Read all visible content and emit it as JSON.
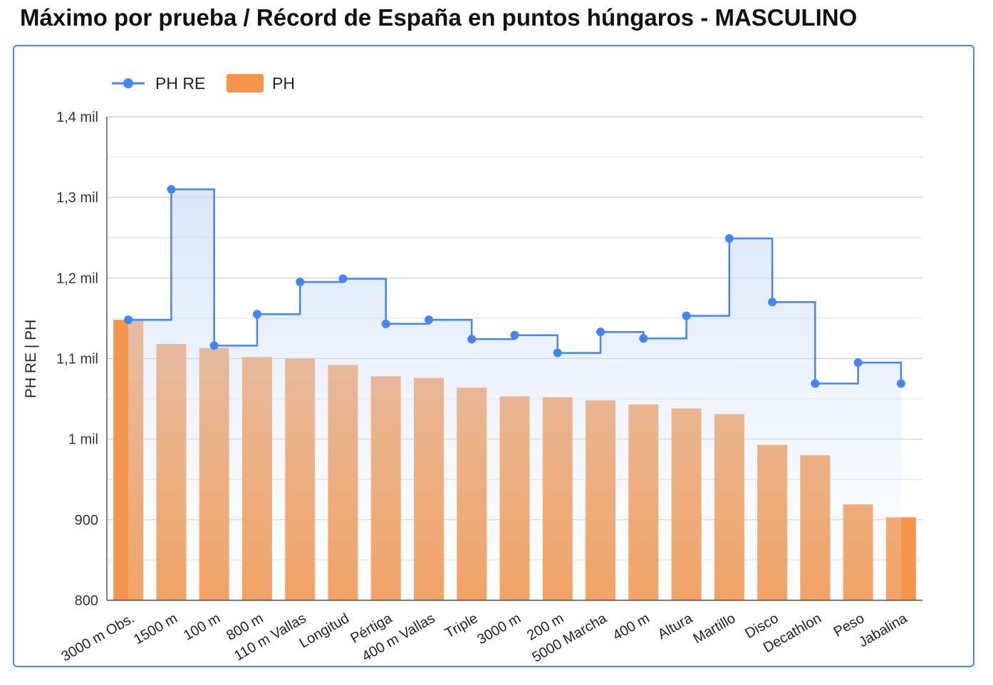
{
  "title": "Máximo por prueba / Récord de España en puntos húngaros - MASCULINO",
  "colors": {
    "ph_re": "#4285f4",
    "ph": "#f4954b",
    "grid": "#cccccc",
    "card_border": "#4a86e8"
  },
  "chart_data": {
    "type": "bar",
    "categories": [
      "3000 m Obs.",
      "1500 m",
      "100 m",
      "800 m",
      "110 m Vallas",
      "Longitud",
      "Pértiga",
      "400 m Vallas",
      "Triple",
      "3000 m",
      "200 m",
      "5000 Marcha",
      "400 m",
      "Altura",
      "Martillo",
      "Disco",
      "Decathlon",
      "Peso",
      "Jabalina"
    ],
    "series": [
      {
        "name": "PH RE",
        "type": "stepped-area",
        "values": [
          1148,
          1310,
          1116,
          1155,
          1195,
          1199,
          1143,
          1148,
          1124,
          1129,
          1107,
          1133,
          1125,
          1153,
          1249,
          1170,
          1069,
          1095,
          1069
        ]
      },
      {
        "name": "PH",
        "type": "bar",
        "values": [
          1148,
          1118,
          1113,
          1102,
          1100,
          1092,
          1078,
          1076,
          1064,
          1053,
          1052,
          1048,
          1043,
          1038,
          1031,
          993,
          980,
          919,
          903
        ]
      }
    ],
    "ylabel": "PH RE | PH",
    "xlabel": "",
    "ylim": [
      800,
      1400
    ],
    "yticks": [
      {
        "value": 800,
        "label": "800"
      },
      {
        "value": 900,
        "label": "900"
      },
      {
        "value": 1000,
        "label": "1 mil"
      },
      {
        "value": 1100,
        "label": "1,1 mil"
      },
      {
        "value": 1200,
        "label": "1,2 mil"
      },
      {
        "value": 1300,
        "label": "1,3 mil"
      },
      {
        "value": 1400,
        "label": "1,4 mil"
      }
    ],
    "grid": true,
    "legend": "top-left"
  }
}
